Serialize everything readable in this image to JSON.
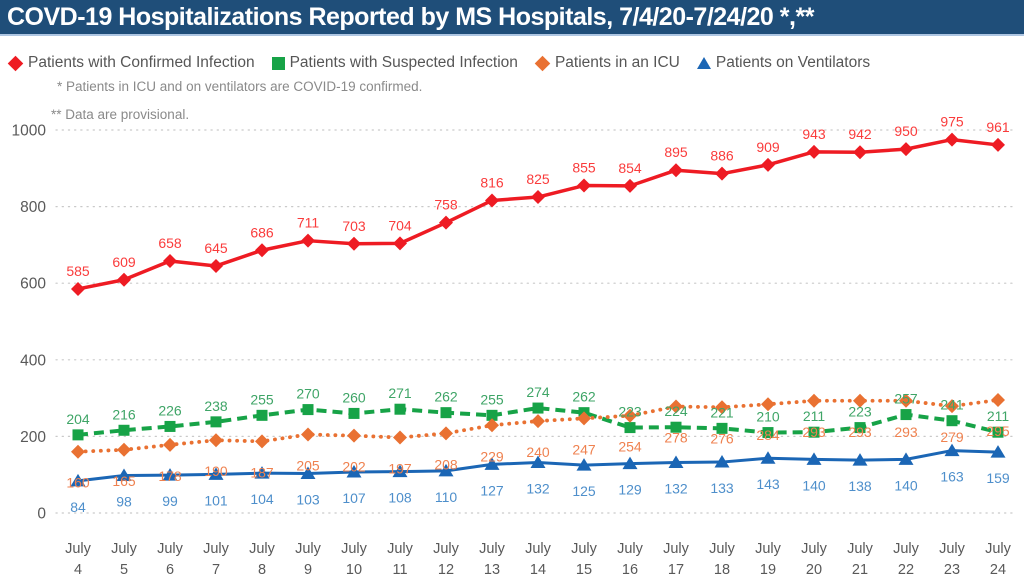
{
  "header": {
    "title": "COVD-19 Hospitalizations Reported by MS Hospitals, 7/4/20-7/24/20 *,**",
    "bg_color": "#1F4E79",
    "text_color": "#FFFFFF"
  },
  "notes": [
    "* Patients in ICU and on ventilators are COVID-19 confirmed.",
    "** Data are provisional."
  ],
  "axis": {
    "x_month_label": "July",
    "tick_color": "#595959"
  },
  "chart_data": {
    "type": "line",
    "title": "COVD-19 Hospitalizations Reported by MS Hospitals, 7/4/20-7/24/20 *,**",
    "categories": [
      "July 4",
      "July 5",
      "July 6",
      "July 7",
      "July 8",
      "July 9",
      "July 10",
      "July 11",
      "July 12",
      "July 13",
      "July 14",
      "July 15",
      "July 16",
      "July 17",
      "July 18",
      "July 19",
      "July 20",
      "July 21",
      "July 22",
      "July 23",
      "July 24"
    ],
    "yticks": [
      0,
      200,
      400,
      600,
      800,
      1000
    ],
    "ylim": [
      0,
      1050
    ],
    "grid": "horizontal-dotted",
    "legend_position": "top",
    "series": [
      {
        "name": "Patients with Confirmed Infection",
        "marker": "diamond",
        "line_style": "solid",
        "color": "#EE1B23",
        "label_color": "#FA3C3C",
        "values": [
          585,
          609,
          658,
          645,
          686,
          711,
          703,
          704,
          758,
          816,
          825,
          855,
          854,
          895,
          886,
          909,
          943,
          942,
          950,
          975,
          961
        ]
      },
      {
        "name": "Patients with Suspected Infection",
        "marker": "square",
        "line_style": "dashed",
        "color": "#17A347",
        "label_color": "#3FA567",
        "values": [
          204,
          216,
          226,
          238,
          255,
          270,
          260,
          271,
          262,
          255,
          274,
          262,
          223,
          224,
          221,
          210,
          211,
          223,
          257,
          241,
          211
        ]
      },
      {
        "name": "Patients in an ICU",
        "marker": "diamond",
        "line_style": "dotted",
        "color": "#E97132",
        "label_color": "#EF8250",
        "values": [
          160,
          165,
          178,
          190,
          187,
          205,
          202,
          197,
          208,
          229,
          240,
          247,
          254,
          278,
          276,
          284,
          293,
          293,
          293,
          279,
          295
        ]
      },
      {
        "name": "Patients on Ventilators",
        "marker": "triangle",
        "line_style": "solid",
        "color": "#1B66B5",
        "label_color": "#4E8FCB",
        "values": [
          84,
          98,
          99,
          101,
          104,
          103,
          107,
          108,
          110,
          127,
          132,
          125,
          129,
          132,
          133,
          143,
          140,
          138,
          140,
          163,
          159
        ]
      }
    ]
  }
}
